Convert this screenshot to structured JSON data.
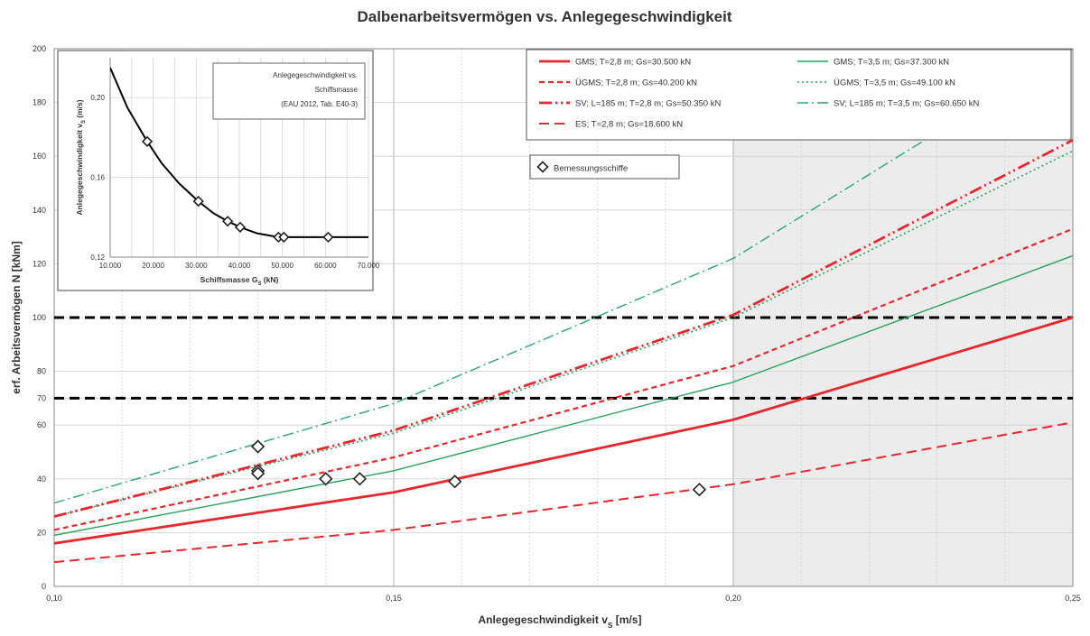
{
  "chart_data": [
    {
      "type": "line",
      "title": "Dalbenarbeitsvermögen vs. Anlegegeschwindigkeit",
      "xlabel": "Anlegegeschwindigkeit v_S [m/s]",
      "ylabel": "erf. Arbeitsvermögen N  [kNm]",
      "xlim": [
        0.1,
        0.25
      ],
      "ylim": [
        0,
        200
      ],
      "x_ticks": [
        0.1,
        0.15,
        0.2,
        0.25
      ],
      "x_tick_labels": [
        "0,10",
        "0,15",
        "0,20",
        "0,25"
      ],
      "y_ticks": [
        0,
        20,
        40,
        60,
        70,
        80,
        100,
        120,
        140,
        160,
        180,
        200
      ],
      "y_tick_labels": [
        "0",
        "20",
        "40",
        "60",
        "70",
        "80",
        "100",
        "120",
        "140",
        "160",
        "180",
        "200"
      ],
      "grid": true,
      "shaded_region": {
        "x_from": 0.2,
        "x_to": 0.25,
        "color": "#ececec"
      },
      "reference_lines": [
        {
          "y": 100,
          "style": "dashed",
          "color": "#000000"
        },
        {
          "y": 70,
          "style": "dashed",
          "color": "#000000"
        }
      ],
      "series": [
        {
          "name": "GMS; T=2,8 m; Gs=30.500 kN",
          "style": "solid",
          "color": "#e8262d",
          "width": 2.8,
          "x": [
            0.1,
            0.15,
            0.2,
            0.25
          ],
          "y": [
            16,
            35,
            62,
            100
          ]
        },
        {
          "name": "GMS; T=3,5 m; Gs=37.300 kN",
          "style": "solid",
          "color": "#27a35b",
          "width": 1.4,
          "x": [
            0.1,
            0.15,
            0.2,
            0.25
          ],
          "y": [
            19,
            43,
            76,
            123
          ]
        },
        {
          "name": "ÜGMS; T=2,8 m; Gs=40.200 kN",
          "style": "dash",
          "color": "#e8262d",
          "width": 2.2,
          "x": [
            0.1,
            0.15,
            0.2,
            0.25
          ],
          "y": [
            21,
            48,
            82,
            133
          ]
        },
        {
          "name": "ÜGMS; T=3,5 m; Gs=49.100 kN",
          "style": "dot",
          "color": "#27a35b",
          "width": 1.6,
          "x": [
            0.1,
            0.15,
            0.2,
            0.25
          ],
          "y": [
            26,
            57,
            100,
            162
          ]
        },
        {
          "name": "SV; L=185 m; T=2,8 m; Gs=50.350 kN",
          "style": "dashdotdot",
          "color": "#e8262d",
          "width": 2.8,
          "x": [
            0.1,
            0.15,
            0.2,
            0.25
          ],
          "y": [
            26,
            58,
            101,
            166
          ]
        },
        {
          "name": "SV; L=185 m; T=3,5 m; Gs=60.650 kN",
          "style": "dashdot",
          "color": "#2aa37a",
          "width": 1.4,
          "x": [
            0.1,
            0.15,
            0.2,
            0.25
          ],
          "y": [
            31,
            68,
            122,
            200
          ]
        },
        {
          "name": "ES; T=2,8 m; Gs=18.600 kN",
          "style": "longdash",
          "color": "#e8262d",
          "width": 2.0,
          "x": [
            0.1,
            0.15,
            0.2,
            0.25
          ],
          "y": [
            9,
            21,
            38,
            61
          ]
        }
      ],
      "markers": {
        "name": "Bemessungsschiffe",
        "x": [
          0.13,
          0.13,
          0.13,
          0.14,
          0.145,
          0.159,
          0.195
        ],
        "y": [
          52,
          43,
          42,
          40,
          40,
          39,
          36
        ]
      },
      "legend_position": "top-right"
    },
    {
      "type": "line",
      "title": "Anlegegeschwindigkeit vs. Schiffsmasse (EAU 2012, Tab. E40-3)",
      "title_lines": [
        "Anlegegeschwindigkeit vs.",
        "Schiffsmasse",
        "(EAU 2012, Tab. E40-3)"
      ],
      "xlabel": "Schiffsmasse  G_S (kN)",
      "ylabel": "Anlegegeschwindigkeit v_S (m/s)",
      "xlim": [
        10000,
        70000
      ],
      "ylim": [
        0.12,
        0.22
      ],
      "x_ticks": [
        10000,
        20000,
        30000,
        40000,
        50000,
        60000,
        70000
      ],
      "x_tick_labels": [
        "10.000",
        "20.000",
        "30.000",
        "40.000",
        "50.000",
        "60.000",
        "70.000"
      ],
      "y_ticks": [
        0.12,
        0.16,
        0.2
      ],
      "y_tick_labels": [
        "0,12",
        "0,16",
        "0,20"
      ],
      "grid": true,
      "series": [
        {
          "name": "",
          "color": "#000000",
          "x": [
            10000,
            14000,
            18600,
            22000,
            26000,
            30500,
            34000,
            37300,
            40200,
            44000,
            49100,
            50350,
            55000,
            60650,
            70000
          ],
          "y": [
            0.215,
            0.195,
            0.178,
            0.167,
            0.157,
            0.148,
            0.142,
            0.138,
            0.135,
            0.132,
            0.13,
            0.13,
            0.13,
            0.13,
            0.13
          ]
        }
      ],
      "markers": {
        "x": [
          18600,
          30500,
          37300,
          40200,
          49100,
          50350,
          60650
        ],
        "y": [
          0.178,
          0.148,
          0.138,
          0.135,
          0.13,
          0.13,
          0.13
        ]
      }
    }
  ]
}
